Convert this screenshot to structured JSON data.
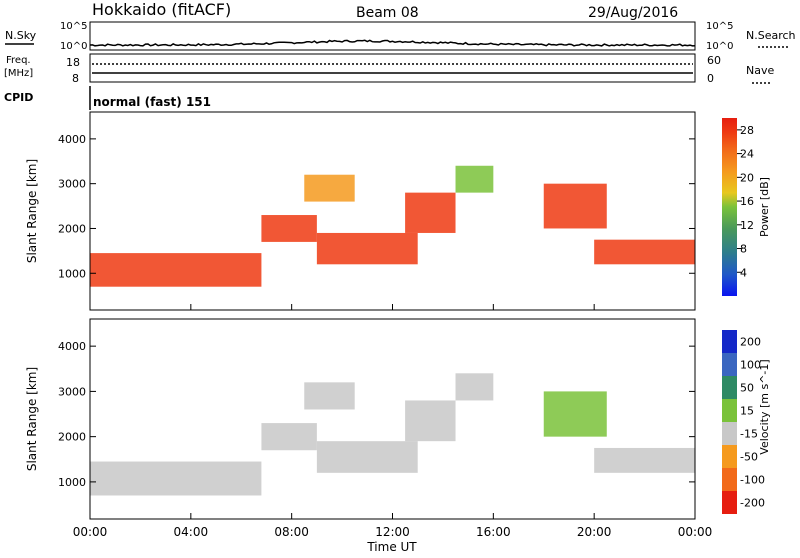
{
  "header": {
    "station": "Hokkaido (fitACF)",
    "beam": "Beam 08",
    "date": "29/Aug/2016"
  },
  "noise_panel": {
    "left_label": "N.Sky",
    "right_label": "N.Search",
    "left_ticks": [
      "10^5",
      "10^0"
    ],
    "right_ticks": [
      "10^5",
      "10^0"
    ]
  },
  "freq_panel": {
    "left_label_1": "Freq.",
    "left_label_2": "[MHz]",
    "left_ticks": [
      "18",
      "8"
    ],
    "right_label": "Nave",
    "right_ticks": [
      "60",
      "0"
    ]
  },
  "cpid_panel": {
    "label": "CPID",
    "mode": "normal (fast) 151"
  },
  "x_axis": {
    "label": "Time UT",
    "ticks": [
      "00:00",
      "04:00",
      "08:00",
      "12:00",
      "16:00",
      "20:00",
      "00:00"
    ]
  },
  "chart_data": [
    {
      "type": "heatmap",
      "title": "",
      "ylabel": "Slant Range [km]",
      "xlabel": "Time UT",
      "x_ticks": [
        "00:00",
        "04:00",
        "08:00",
        "12:00",
        "16:00",
        "20:00",
        "00:00"
      ],
      "y_ticks": [
        1000,
        2000,
        3000,
        4000
      ],
      "ylim": [
        180,
        4600
      ],
      "colorbar": {
        "label": "Power [dB]",
        "ticks": [
          4,
          8,
          12,
          16,
          20,
          24,
          28
        ],
        "range": [
          0,
          30
        ],
        "colors": [
          "#0a14f0",
          "#1f58c8",
          "#2e7f8a",
          "#4a9a5a",
          "#7ac23a",
          "#e8c81e",
          "#f59a1e",
          "#f26a1a",
          "#ee3a12",
          "#e61e10"
        ]
      },
      "bands": [
        {
          "t0": 0.0,
          "t1": 6.8,
          "r0": 700,
          "r1": 1450,
          "level": "red"
        },
        {
          "t0": 6.8,
          "t1": 9.0,
          "r0": 1700,
          "r1": 2300,
          "level": "red"
        },
        {
          "t0": 8.5,
          "t1": 10.5,
          "r0": 2600,
          "r1": 3200,
          "level": "orange"
        },
        {
          "t0": 9.0,
          "t1": 13.0,
          "r0": 1200,
          "r1": 1900,
          "level": "red"
        },
        {
          "t0": 12.5,
          "t1": 14.5,
          "r0": 1900,
          "r1": 2800,
          "level": "red"
        },
        {
          "t0": 14.5,
          "t1": 16.0,
          "r0": 2800,
          "r1": 3400,
          "level": "green"
        },
        {
          "t0": 18.0,
          "t1": 20.5,
          "r0": 2000,
          "r1": 3000,
          "level": "red"
        },
        {
          "t0": 20.0,
          "t1": 24.0,
          "r0": 1200,
          "r1": 1750,
          "level": "red"
        }
      ]
    },
    {
      "type": "heatmap",
      "title": "",
      "ylabel": "Slant Range [km]",
      "xlabel": "Time UT",
      "x_ticks": [
        "00:00",
        "04:00",
        "08:00",
        "12:00",
        "16:00",
        "20:00",
        "00:00"
      ],
      "y_ticks": [
        1000,
        2000,
        3000,
        4000
      ],
      "ylim": [
        180,
        4600
      ],
      "colorbar": {
        "label": "Velocity [m s^-1]",
        "ticks": [
          200,
          100,
          50,
          15,
          -15,
          -50,
          -100,
          -200
        ],
        "colors": [
          "#1428c8",
          "#3a66c0",
          "#2e8a64",
          "#7ac23a",
          "#c8c8c8",
          "#f59a1e",
          "#f26a1a",
          "#e61e10"
        ]
      },
      "bands": [
        {
          "t0": 0.0,
          "t1": 6.8,
          "r0": 700,
          "r1": 1450,
          "level": "gray"
        },
        {
          "t0": 6.8,
          "t1": 9.0,
          "r0": 1700,
          "r1": 2300,
          "level": "gray"
        },
        {
          "t0": 8.5,
          "t1": 10.5,
          "r0": 2600,
          "r1": 3200,
          "level": "gray"
        },
        {
          "t0": 9.0,
          "t1": 13.0,
          "r0": 1200,
          "r1": 1900,
          "level": "gray"
        },
        {
          "t0": 12.5,
          "t1": 14.5,
          "r0": 1900,
          "r1": 2800,
          "level": "gray"
        },
        {
          "t0": 14.5,
          "t1": 16.0,
          "r0": 2800,
          "r1": 3400,
          "level": "gray"
        },
        {
          "t0": 18.0,
          "t1": 20.5,
          "r0": 2000,
          "r1": 3000,
          "level": "green"
        },
        {
          "t0": 20.0,
          "t1": 24.0,
          "r0": 1200,
          "r1": 1750,
          "level": "gray"
        }
      ]
    }
  ]
}
